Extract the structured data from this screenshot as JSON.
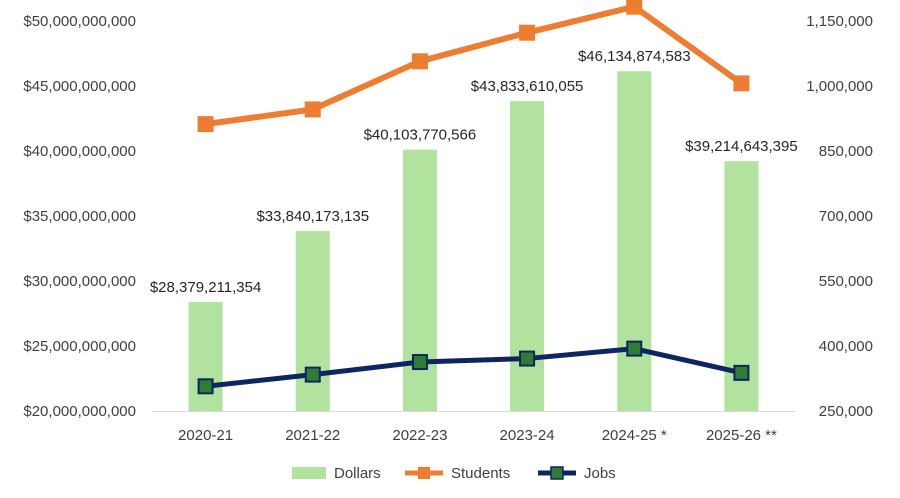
{
  "chart_data": {
    "type": "bar-line-combo",
    "title": "",
    "categories": [
      "2020-21",
      "2021-22",
      "2022-23",
      "2023-24",
      "2024-25 *",
      "2025-26 **"
    ],
    "series": [
      {
        "name": "Dollars",
        "type": "bar",
        "axis": "left",
        "color": "#b2e39e",
        "values": [
          28379211354,
          33840173135,
          40103770566,
          43833610055,
          46134874583,
          39214643395
        ],
        "labels": [
          "$28,379,211,354",
          "$33,840,173,135",
          "$40,103,770,566",
          "$43,833,610,055",
          "$46,134,874,583",
          "$39,214,643,395"
        ]
      },
      {
        "name": "Students",
        "type": "line",
        "axis": "right",
        "color": "#ed7d31",
        "values": [
          912000,
          946000,
          1057000,
          1123000,
          1183000,
          1006000
        ]
      },
      {
        "name": "Jobs",
        "type": "line",
        "axis": "right",
        "color": "#0d2561",
        "markerColor": "#2e7d32",
        "values": [
          307000,
          334000,
          363000,
          371000,
          394000,
          338000
        ]
      }
    ],
    "yLeft": {
      "min": 20000000000,
      "max": 50000000000,
      "ticks": [
        20000000000,
        25000000000,
        30000000000,
        35000000000,
        40000000000,
        45000000000,
        50000000000
      ],
      "tickLabels": [
        "$20,000,000,000",
        "$25,000,000,000",
        "$30,000,000,000",
        "$35,000,000,000",
        "$40,000,000,000",
        "$45,000,000,000",
        "$50,000,000,000"
      ]
    },
    "yRight": {
      "min": 250000,
      "max": 1150000,
      "ticks": [
        250000,
        400000,
        550000,
        700000,
        850000,
        1000000,
        1150000
      ],
      "tickLabels": [
        "250,000",
        "400,000",
        "550,000",
        "700,000",
        "850,000",
        "1,000,000",
        "1,150,000"
      ]
    },
    "legend": {
      "position": "bottom",
      "items": [
        "Dollars",
        "Students",
        "Jobs"
      ]
    },
    "grid": false
  }
}
